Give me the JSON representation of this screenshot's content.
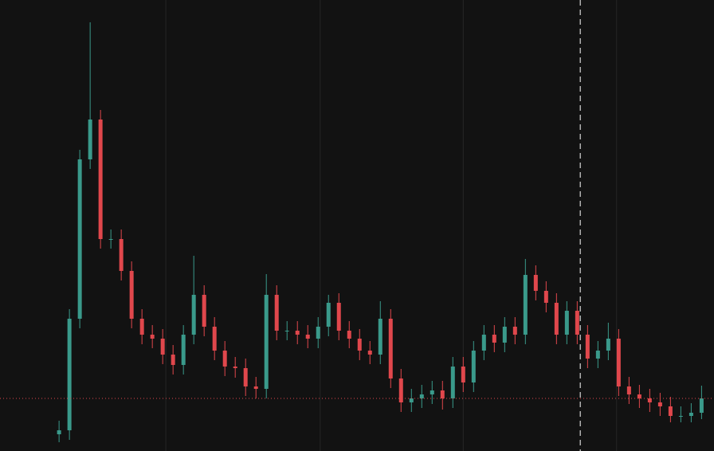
{
  "chart_data": {
    "type": "candlestick",
    "series": [
      {
        "up_color": "#3a9a8b",
        "down_color": "#e0474c",
        "open": [
          21,
          26,
          166,
          366,
          416,
          266,
          266,
          226,
          166,
          146,
          141,
          121,
          108,
          146,
          196,
          156,
          126,
          106,
          104,
          81,
          78,
          196,
          151,
          151,
          146,
          141,
          156,
          186,
          151,
          141,
          126,
          121,
          166,
          91,
          61,
          66,
          71,
          76,
          66,
          106,
          86,
          126,
          146,
          136,
          156,
          146,
          221,
          201,
          186,
          146,
          176,
          146,
          116,
          126,
          141,
          81,
          71,
          66,
          61,
          56,
          44,
          44,
          48
        ],
        "high": [
          38,
          178,
          378,
          538,
          428,
          278,
          278,
          238,
          178,
          158,
          153,
          133,
          158,
          245,
          208,
          168,
          138,
          118,
          116,
          93,
          222,
          208,
          163,
          163,
          158,
          168,
          196,
          198,
          163,
          153,
          138,
          188,
          178,
          103,
          78,
          83,
          88,
          88,
          118,
          118,
          138,
          158,
          158,
          168,
          168,
          241,
          233,
          213,
          198,
          188,
          188,
          158,
          138,
          161,
          153,
          93,
          83,
          78,
          73,
          68,
          56,
          60,
          82
        ],
        "low": [
          11,
          14,
          154,
          354,
          254,
          254,
          214,
          154,
          134,
          129,
          109,
          96,
          96,
          134,
          144,
          114,
          94,
          92,
          69,
          66,
          66,
          139,
          139,
          134,
          129,
          129,
          144,
          139,
          129,
          114,
          109,
          109,
          79,
          49,
          49,
          54,
          59,
          52,
          54,
          74,
          74,
          114,
          124,
          124,
          134,
          134,
          189,
          174,
          134,
          134,
          134,
          104,
          104,
          114,
          69,
          59,
          54,
          49,
          44,
          36,
          36,
          36,
          40
        ],
        "close": [
          26,
          166,
          366,
          416,
          266,
          266,
          226,
          166,
          146,
          141,
          121,
          108,
          146,
          196,
          156,
          126,
          106,
          104,
          81,
          78,
          196,
          151,
          151,
          146,
          141,
          156,
          186,
          151,
          141,
          126,
          121,
          166,
          91,
          61,
          66,
          71,
          76,
          66,
          106,
          86,
          126,
          146,
          136,
          156,
          146,
          221,
          201,
          186,
          146,
          176,
          146,
          116,
          126,
          141,
          81,
          71,
          66,
          61,
          56,
          44,
          44,
          48,
          66
        ]
      }
    ],
    "xlim": [
      -5.7,
      63.2
    ],
    "ylim": [
      0,
      566
    ],
    "xticks": [
      10.3,
      25.2,
      39,
      53.8
    ],
    "vertical_marker": 50.3,
    "price_line_color": "#e0474c",
    "grid": true
  }
}
